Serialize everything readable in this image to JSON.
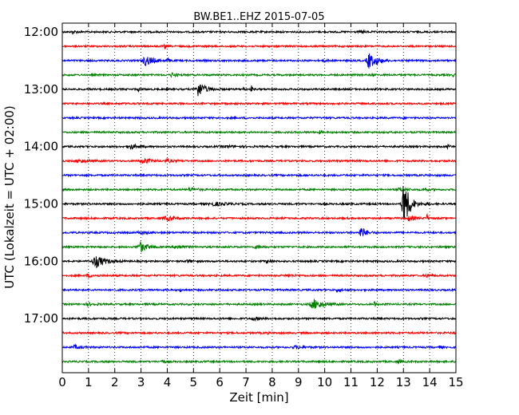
{
  "chart_data": {
    "type": "line",
    "title": "BW.BE1..EHZ 2015-07-05",
    "xlabel": "Zeit  [min]",
    "ylabel": "UTC (Lokalzeit = UTC + 02:00)",
    "xlim": [
      0,
      15
    ],
    "x_ticks": [
      "0",
      "1",
      "2",
      "3",
      "4",
      "5",
      "6",
      "7",
      "8",
      "9",
      "10",
      "11",
      "12",
      "13",
      "14",
      "15"
    ],
    "y_tick_labels": [
      "12:00",
      "13:00",
      "14:00",
      "15:00",
      "16:00",
      "17:00"
    ],
    "grid": true,
    "trace_interval_min": 15,
    "series": [
      {
        "start": "12:00",
        "color": "#000000",
        "events": [
          [
            0.4,
            2,
            0.15
          ],
          [
            11.4,
            1.5,
            0.15
          ]
        ]
      },
      {
        "start": "12:15",
        "color": "#ff0000",
        "events": [
          [
            3.9,
            4,
            0.05
          ]
        ]
      },
      {
        "start": "12:30",
        "color": "#0000ff",
        "events": [
          [
            3.2,
            6,
            0.35
          ],
          [
            4.0,
            2,
            0.15
          ],
          [
            10.0,
            1.5,
            0.1
          ],
          [
            11.7,
            10,
            0.25
          ],
          [
            12.0,
            2,
            0.2
          ]
        ]
      },
      {
        "start": "12:45",
        "color": "#008000",
        "events": [
          [
            4.2,
            2.5,
            0.2
          ],
          [
            11.8,
            1.5,
            0.1
          ],
          [
            14.9,
            2,
            0.05
          ]
        ]
      },
      {
        "start": "13:00",
        "color": "#000000",
        "events": [
          [
            2.9,
            2,
            0.1
          ],
          [
            5.2,
            9,
            0.3
          ],
          [
            6.9,
            3,
            0.05
          ],
          [
            7.2,
            7,
            0.04
          ]
        ]
      },
      {
        "start": "13:15",
        "color": "#ff0000",
        "events": []
      },
      {
        "start": "13:30",
        "color": "#0000ff",
        "events": [
          [
            13.0,
            2,
            0.05
          ]
        ]
      },
      {
        "start": "13:45",
        "color": "#008000",
        "events": [
          [
            9.8,
            1.5,
            0.1
          ]
        ]
      },
      {
        "start": "14:00",
        "color": "#000000",
        "events": [
          [
            2.6,
            3,
            0.3
          ],
          [
            6.3,
            1,
            0.5
          ],
          [
            14.7,
            2,
            0.1
          ]
        ]
      },
      {
        "start": "14:15",
        "color": "#ff0000",
        "events": [
          [
            0.7,
            2,
            0.4
          ],
          [
            3.1,
            3,
            0.35
          ],
          [
            4.0,
            1.5,
            0.3
          ]
        ]
      },
      {
        "start": "14:30",
        "color": "#0000ff",
        "events": []
      },
      {
        "start": "14:45",
        "color": "#008000",
        "events": [
          [
            4.9,
            2,
            0.3
          ],
          [
            12.9,
            2,
            0.3
          ],
          [
            13.8,
            1.5,
            0.2
          ]
        ]
      },
      {
        "start": "15:00",
        "color": "#000000",
        "events": [
          [
            5.8,
            2,
            0.5
          ],
          [
            13.0,
            32,
            0.15
          ],
          [
            13.2,
            8,
            0.3
          ]
        ]
      },
      {
        "start": "15:15",
        "color": "#ff0000",
        "events": [
          [
            4.0,
            2.5,
            0.35
          ],
          [
            13.2,
            2.5,
            0.3
          ],
          [
            13.9,
            5,
            0.05
          ]
        ]
      },
      {
        "start": "15:30",
        "color": "#0000ff",
        "events": [
          [
            3.0,
            2,
            0.3
          ],
          [
            11.4,
            7,
            0.2
          ]
        ]
      },
      {
        "start": "15:45",
        "color": "#008000",
        "events": [
          [
            3.0,
            6,
            0.3
          ],
          [
            4.4,
            2,
            0.3
          ],
          [
            7.4,
            2,
            0.2
          ]
        ]
      },
      {
        "start": "16:00",
        "color": "#000000",
        "events": [
          [
            1.3,
            7,
            0.4
          ],
          [
            4.8,
            1.5,
            0.2
          ],
          [
            7.8,
            1.5,
            0.2
          ]
        ]
      },
      {
        "start": "16:15",
        "color": "#ff0000",
        "events": [
          [
            1.0,
            1.5,
            0.3
          ],
          [
            8.6,
            1.5,
            0.3
          ],
          [
            13.9,
            1.5,
            0.2
          ]
        ]
      },
      {
        "start": "16:30",
        "color": "#0000ff",
        "events": [
          [
            4.5,
            2.5,
            0.05
          ],
          [
            10.5,
            1.5,
            0.2
          ]
        ]
      },
      {
        "start": "16:45",
        "color": "#008000",
        "events": [
          [
            1.0,
            1.5,
            0.3
          ],
          [
            9.6,
            6,
            0.4
          ],
          [
            11.9,
            5,
            0.05
          ]
        ]
      },
      {
        "start": "17:00",
        "color": "#000000",
        "events": [
          [
            7.3,
            1.5,
            0.3
          ]
        ]
      },
      {
        "start": "17:15",
        "color": "#ff0000",
        "events": [
          [
            7.8,
            2,
            0.05
          ],
          [
            14.9,
            2,
            0.05
          ]
        ]
      },
      {
        "start": "17:30",
        "color": "#0000ff",
        "events": [
          [
            0.5,
            2,
            0.3
          ],
          [
            8.9,
            1.5,
            0.3
          ],
          [
            14.4,
            3,
            0.05
          ]
        ]
      },
      {
        "start": "17:45",
        "color": "#008000",
        "events": [
          [
            3.8,
            2,
            0.1
          ],
          [
            12.8,
            1.5,
            0.2
          ]
        ]
      }
    ]
  }
}
